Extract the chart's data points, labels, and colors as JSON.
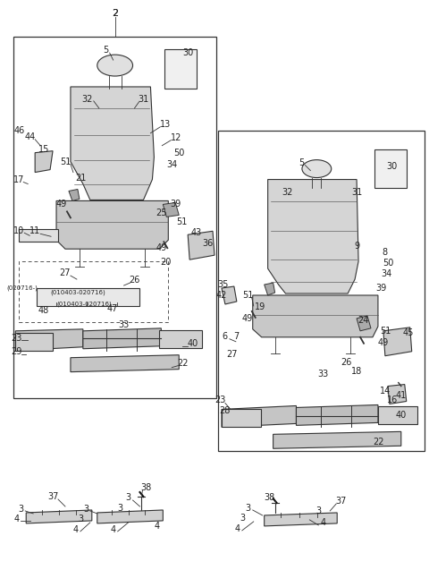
{
  "bg_color": "#ffffff",
  "line_color": "#333333",
  "text_color": "#222222",
  "fig_width": 4.8,
  "fig_height": 6.56,
  "dpi": 100
}
